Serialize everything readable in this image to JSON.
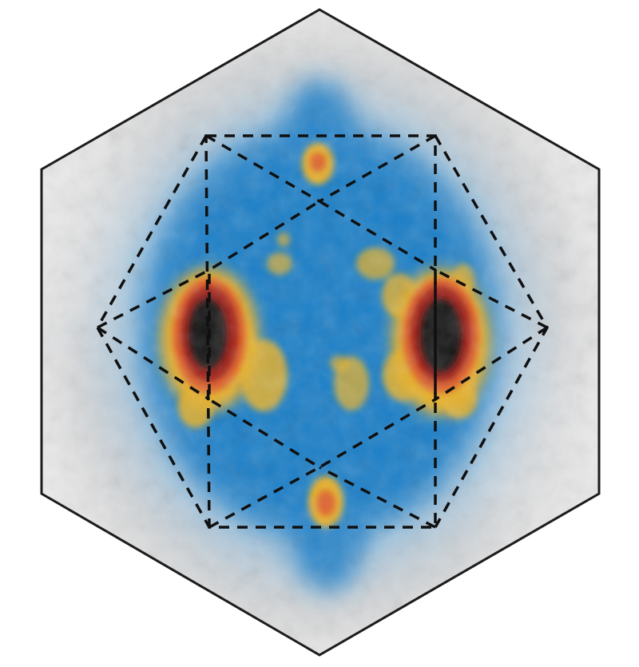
{
  "figure": {
    "background_color": "#ffffff",
    "hexagon_outline_color": "#1c1c1c",
    "overlay_line_color": "#101010",
    "overlay_line_style": "dashed",
    "colormap": [
      "#ececec",
      "#c9c9c9",
      "#6aa9d8",
      "#1f7fc7",
      "#e7b12a",
      "#e0622b",
      "#9e1a14",
      "#171717"
    ],
    "features": {
      "halo": "diffuse-blue-halo",
      "hotspot_left": "dark-red-hotspot-left",
      "hotspot_right": "dark-red-hotspot-right",
      "spot_top": "orange-spot-top",
      "spot_bottom": "orange-spot-bottom",
      "patches": "yellow-speckle-patches"
    }
  }
}
